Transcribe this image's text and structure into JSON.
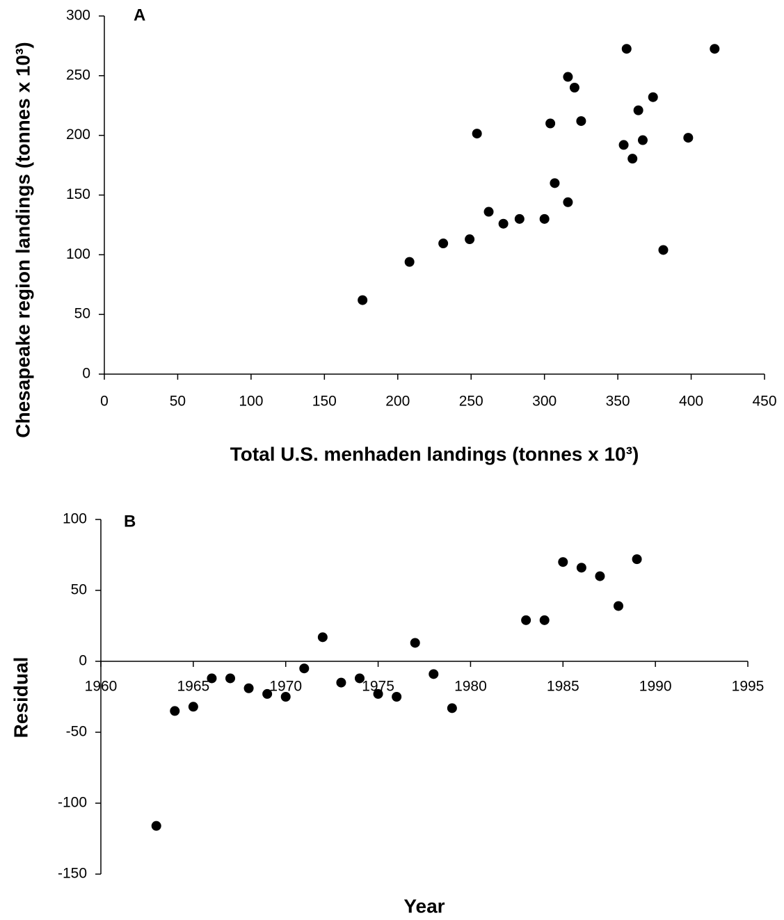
{
  "chart_data": [
    {
      "type": "scatter",
      "annotation": "A",
      "x_label": "Total U.S. menhaden landings (tonnes x 10³)",
      "y_label": "Chesapeake region landings (tonnes x 10³)",
      "x": [
        176,
        208,
        231,
        249,
        254,
        262,
        272,
        283,
        300,
        304,
        307,
        316,
        316,
        320.5,
        325,
        354,
        356,
        360,
        364,
        367,
        374,
        381,
        398,
        416
      ],
      "values": [
        62,
        94,
        109.5,
        113,
        201.5,
        136,
        126,
        130,
        130,
        210,
        160,
        144,
        249,
        240,
        212,
        192,
        272.5,
        180.5,
        221,
        196,
        232,
        104,
        198,
        272.5
      ],
      "color": "#000000",
      "xlim": [
        0,
        450
      ],
      "xticks": [
        0,
        50,
        100,
        150,
        200,
        250,
        300,
        350,
        400,
        450
      ],
      "ylim": [
        0,
        300
      ],
      "yticks": [
        0,
        50,
        100,
        150,
        200,
        250,
        300
      ]
    },
    {
      "type": "scatter",
      "annotation": "B",
      "x_label": "Year",
      "y_label": "Residual",
      "x": [
        1963,
        1964,
        1965,
        1966,
        1967,
        1968,
        1969,
        1970,
        1971,
        1972,
        1973,
        1974,
        1975,
        1976,
        1977,
        1978,
        1979,
        1983,
        1984,
        1985,
        1986,
        1987,
        1988,
        1989
      ],
      "values": [
        -116,
        -35,
        -32,
        -12,
        -12,
        -19,
        -23,
        -25,
        -5,
        17,
        -15,
        -12,
        -23,
        -25,
        13,
        -9,
        -33,
        29,
        29,
        70,
        66,
        60,
        39,
        72
      ],
      "color": "#000000",
      "xlim": [
        1960,
        1995
      ],
      "xticks": [
        1960,
        1965,
        1970,
        1975,
        1980,
        1985,
        1990,
        1995
      ],
      "ylim": [
        -150,
        100
      ],
      "yticks": [
        -150,
        -100,
        -50,
        0,
        50,
        100
      ]
    }
  ]
}
